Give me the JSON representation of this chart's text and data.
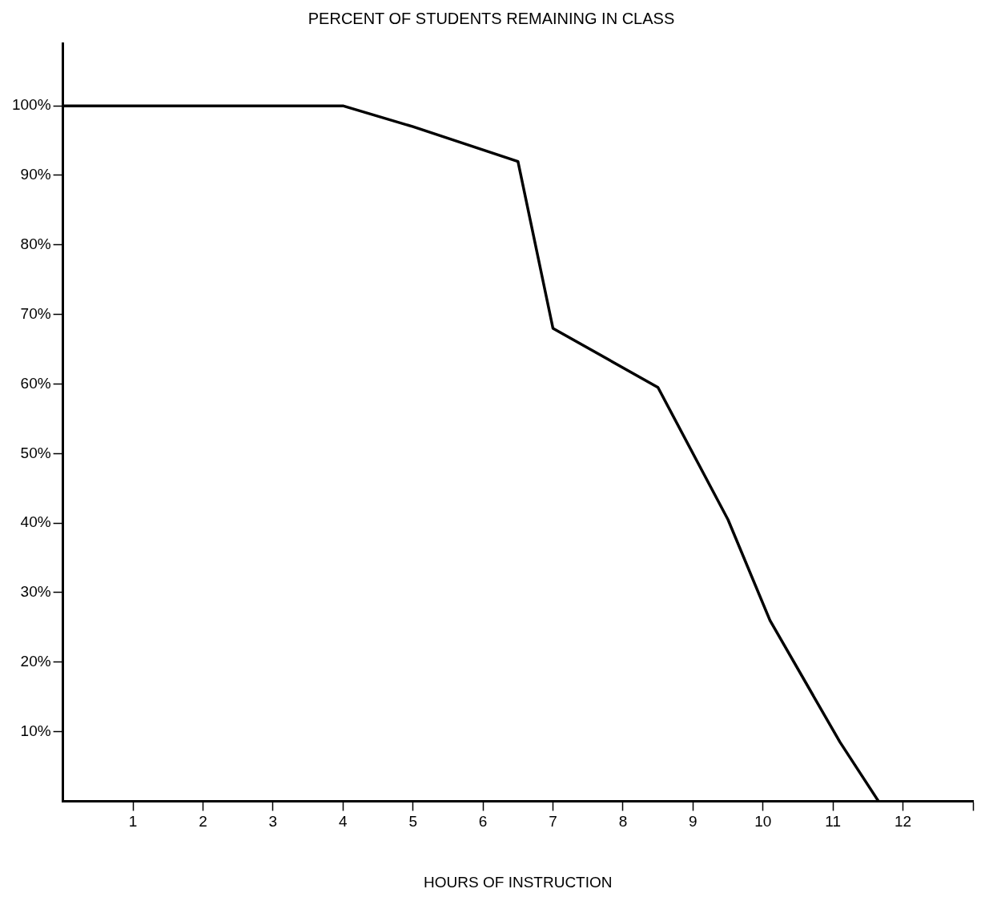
{
  "chart_data": {
    "type": "line",
    "title": "PERCENT OF STUDENTS REMAINING IN CLASS",
    "xlabel": "HOURS OF INSTRUCTION",
    "x": [
      0,
      4,
      5,
      6.5,
      7,
      8.5,
      9.5,
      10.1,
      11.1,
      11.65
    ],
    "series": [
      {
        "color": "#000000",
        "values": [
          100,
          100,
          97,
          92,
          68,
          59.5,
          40.5,
          26,
          8.5,
          0
        ]
      }
    ],
    "xlim": [
      0,
      13
    ],
    "xticks": [
      1,
      2,
      3,
      4,
      5,
      6,
      7,
      8,
      9,
      10,
      11,
      12,
      {
        "value": 13,
        "label": null
      }
    ],
    "ylim": [
      0,
      109
    ],
    "yticks": [
      {
        "value": 10,
        "label": "10%"
      },
      {
        "value": 20,
        "label": "20%"
      },
      {
        "value": 30,
        "label": "30%"
      },
      {
        "value": 40,
        "label": "40%"
      },
      {
        "value": 50,
        "label": "50%"
      },
      {
        "value": 60,
        "label": "60%"
      },
      {
        "value": 70,
        "label": "70%"
      },
      {
        "value": 80,
        "label": "80%"
      },
      {
        "value": 90,
        "label": "90%"
      },
      {
        "value": 100,
        "label": "100%"
      }
    ],
    "grid": false,
    "legend": false,
    "marker": "none",
    "line_style": "solid"
  }
}
